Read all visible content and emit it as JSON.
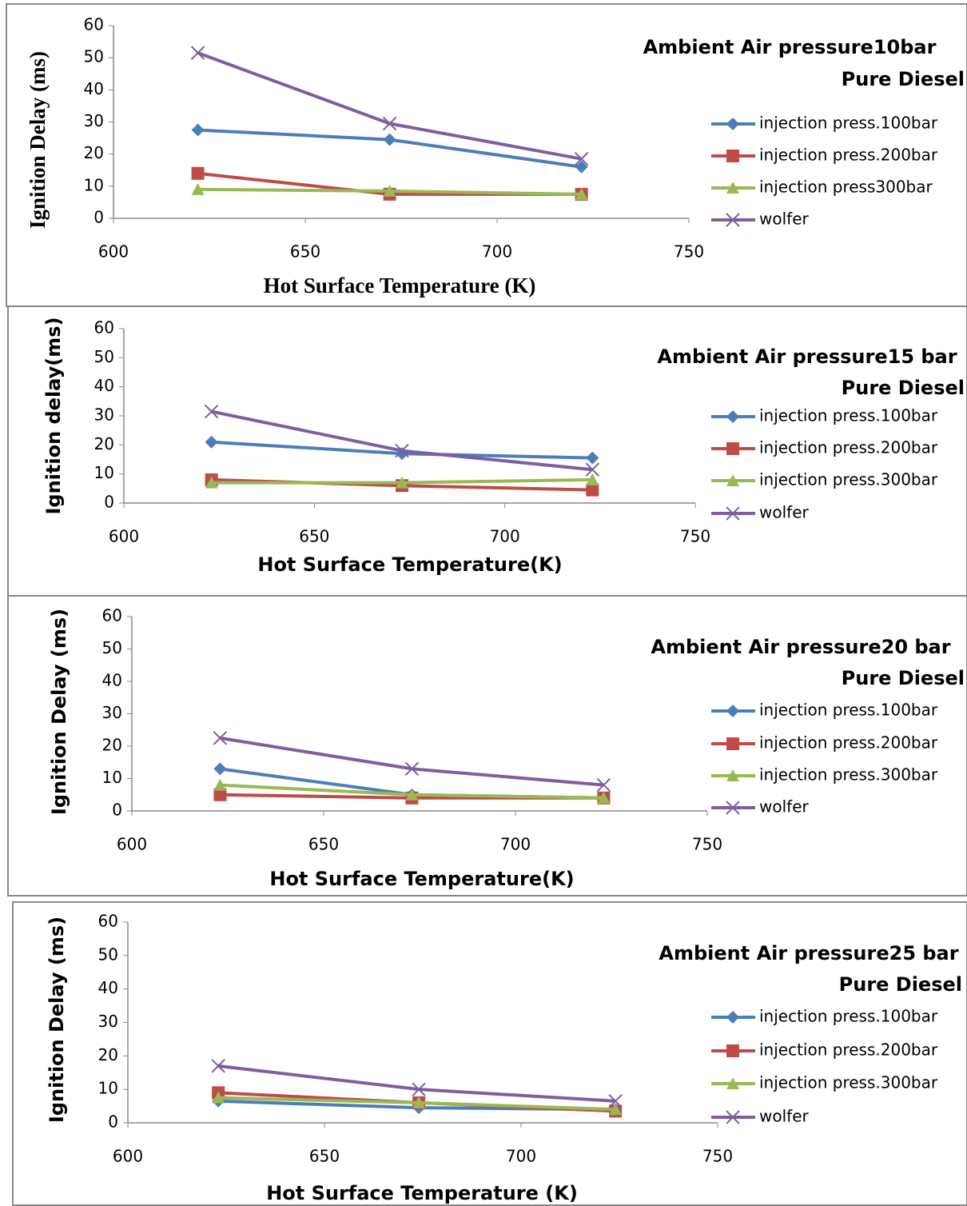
{
  "chart_data": [
    {
      "type": "line",
      "title": "Ambient Air pressure10bar",
      "subtitle": "Pure Diesel",
      "x_label": "Hot Surface Temperature (K)",
      "y_label": "Ignition Delay (ms)",
      "x": [
        622,
        672,
        722
      ],
      "series": [
        {
          "name": "injection press.100bar",
          "color": "#4a7ebb",
          "values": [
            27.5,
            24.5,
            16
          ]
        },
        {
          "name": "injection press.200bar",
          "color": "#be4b48",
          "values": [
            14,
            7.5,
            7.5
          ]
        },
        {
          "name": "injection press300bar",
          "color": "#98b954",
          "values": [
            9,
            8.5,
            7.5
          ]
        },
        {
          "name": "wolfer",
          "color": "#7d5fa0",
          "values": [
            51.5,
            29.5,
            18.5
          ]
        }
      ],
      "xlim": [
        600,
        750
      ],
      "xticks": [
        600,
        650,
        700,
        750
      ],
      "ylim": [
        0,
        60
      ],
      "yticks": [
        0,
        10,
        20,
        30,
        40,
        50,
        60
      ],
      "grid": false
    },
    {
      "type": "line",
      "title": "Ambient Air pressure15 bar",
      "subtitle": "Pure Diesel",
      "x_label": "Hot Surface Temperature(K)",
      "y_label": "Ignition delay(ms)",
      "x": [
        623,
        673,
        723
      ],
      "series": [
        {
          "name": "injection press.100bar",
          "color": "#4a7ebb",
          "values": [
            21,
            17,
            15.5
          ]
        },
        {
          "name": "injection press.200bar",
          "color": "#be4b48",
          "values": [
            8,
            6,
            4.5
          ]
        },
        {
          "name": "injection press.300bar",
          "color": "#98b954",
          "values": [
            7,
            7,
            8
          ]
        },
        {
          "name": "wolfer",
          "color": "#7d5fa0",
          "values": [
            31.5,
            18,
            11.5
          ]
        }
      ],
      "xlim": [
        600,
        750
      ],
      "xticks": [
        600,
        650,
        700,
        750
      ],
      "ylim": [
        0,
        60
      ],
      "yticks": [
        0,
        10,
        20,
        30,
        40,
        50,
        60
      ],
      "grid": false
    },
    {
      "type": "line",
      "title": "Ambient Air pressure20 bar",
      "subtitle": "Pure Diesel",
      "x_label": "Hot Surface Temperature(K)",
      "y_label": "Ignition Delay (ms)",
      "x": [
        623,
        673,
        723
      ],
      "series": [
        {
          "name": "injection press.100bar",
          "color": "#4a7ebb",
          "values": [
            13,
            5,
            4
          ]
        },
        {
          "name": "injection press.200bar",
          "color": "#be4b48",
          "values": [
            5,
            4,
            4
          ]
        },
        {
          "name": "injection press.300bar",
          "color": "#98b954",
          "values": [
            8,
            5,
            4
          ]
        },
        {
          "name": "wolfer",
          "color": "#7d5fa0",
          "values": [
            22.5,
            13,
            8
          ]
        }
      ],
      "xlim": [
        600,
        750
      ],
      "xticks": [
        600,
        650,
        700,
        750
      ],
      "ylim": [
        0,
        60
      ],
      "yticks": [
        0,
        10,
        20,
        30,
        40,
        50,
        60
      ],
      "grid": false
    },
    {
      "type": "line",
      "title": "Ambient Air pressure25 bar",
      "subtitle": "Pure Diesel",
      "x_label": "Hot Surface Temperature (K)",
      "y_label": "Ignition Delay (ms)",
      "x": [
        623,
        674,
        724
      ],
      "series": [
        {
          "name": "injection press.100bar",
          "color": "#4a7ebb",
          "values": [
            6.5,
            4.5,
            4
          ]
        },
        {
          "name": "injection press.200bar",
          "color": "#be4b48",
          "values": [
            9,
            6,
            3.5
          ]
        },
        {
          "name": "injection press.300bar",
          "color": "#98b954",
          "values": [
            7.5,
            6,
            4
          ]
        },
        {
          "name": "wolfer",
          "color": "#7d5fa0",
          "values": [
            17,
            10,
            6.5
          ]
        }
      ],
      "xlim": [
        600,
        750
      ],
      "xticks": [
        600,
        650,
        700,
        750
      ],
      "ylim": [
        0,
        60
      ],
      "yticks": [
        0,
        10,
        20,
        30,
        40,
        50,
        60
      ],
      "grid": false
    }
  ]
}
